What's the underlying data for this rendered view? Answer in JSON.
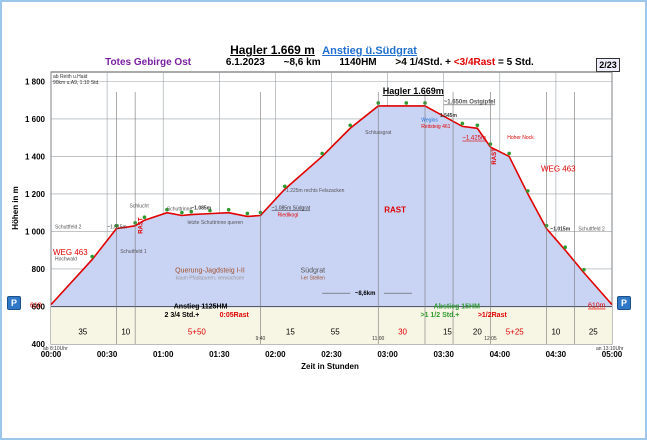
{
  "header": {
    "title": "Hagler 1.669 m",
    "subtitle": "Anstieg ü.Südgrat",
    "region": "Totes Gebirge Ost",
    "date": "6.1.2023",
    "distance": "~8,6 km",
    "elevation_gain": "1140HM",
    "time_prefix": ">4 1/4Std. +",
    "rest": "<3/4Rast",
    "total": "= 5 Std.",
    "page": "2/23"
  },
  "buttons": {
    "prev": "P",
    "next": "P"
  },
  "chart_data": {
    "type": "area",
    "ylabel": "Höhen in m",
    "xlabel": "Zeit in Stunden",
    "ylim": [
      400,
      1850
    ],
    "xlim": [
      0,
      300
    ],
    "y_ticks": [
      "400",
      "600",
      "800",
      "1 000",
      "1 200",
      "1 400",
      "1 600",
      "1 800"
    ],
    "x_ticks": [
      "00:00",
      "00:30",
      "01:00",
      "01:30",
      "02:00",
      "02:30",
      "03:00",
      "03:30",
      "04:00",
      "04:30",
      "05:00"
    ],
    "note": "ab Reith u.Haid\n90km u.A9, 1:10 Std.",
    "peak_label": "Hagler 1.669m",
    "series": [
      {
        "x": [
          0,
          22,
          35,
          45,
          50,
          62,
          70,
          75,
          85,
          95,
          105,
          112,
          125,
          145,
          160,
          175,
          190,
          200,
          220,
          228,
          235,
          245,
          255,
          265,
          275,
          285,
          300
        ],
        "y": [
          610,
          850,
          1015,
          1030,
          1060,
          1100,
          1085,
          1090,
          1095,
          1100,
          1080,
          1085,
          1225,
          1400,
          1550,
          1669,
          1669,
          1669,
          1560,
          1550,
          1450,
          1400,
          1200,
          1015,
          900,
          780,
          610
        ]
      }
    ],
    "rest_label": "RAST",
    "annotations": {
      "ostgipfel": "~1.650m Ostgipfel",
      "felszacken": "~1.225m rechts Felszacken",
      "suedgrat_1085": "~1.085m Südgrat",
      "riedlkogl": "Riedlkogl",
      "schuttfeld2": "Schuttfeld 2",
      "schuttfeld_left": "~1.015m",
      "schlucht": "Schlucht",
      "schuttfeld1": "Schuttfeld 1",
      "hochwald": "Hochwald",
      "weg_left": "WEG 463",
      "weg_right": "WEG 463",
      "weg_right_small": "Weglos",
      "rast_left": "RAST",
      "rast_right": "RAST",
      "rast_mid": "RAST",
      "schlussgrat": "Schlussgrat",
      "schuttrinne": "Schuttrinne",
      "schuttrinne_1085": "~1.085m",
      "letzte_schuttrinne": "letzte Schuttrinne queren",
      "reitsteig": "Reitsteig 461",
      "m1545": "1.545m",
      "m1425": "~1.425m",
      "hoher_nock": "Hoher Nock",
      "m1015_right": "~1.015m",
      "schuttfeld2_right": "Schuttfeld 2",
      "querung": "Querung-Jagdsteig I-II",
      "querung_sub": "kaum Pfadspuren, verwachsen",
      "suedgrat": "Südgrat",
      "suedgrat_sub": "I-er Stellen",
      "dist": "~8,6km",
      "elev_left": "610",
      "elev_right": "610m",
      "anstieg": "Anstieg 1125HM",
      "anstieg_time": "2 3/4 Std.+",
      "anstieg_rast": "0:05Rast",
      "abstieg": "Abstieg  15HM",
      "abstieg_time": ">1 1/2 Std.+",
      "abstieg_rast": ">1/2Rast",
      "start_time": "ab 8:10Uhr",
      "end_time": "an 13:10Uhr",
      "t_940": "9:40",
      "t_1100": "11:00",
      "t_1205": "12:05"
    },
    "segments": [
      "35",
      "10",
      "5+50",
      "15",
      "55",
      "30",
      "15",
      "20",
      "5+25",
      "10",
      "25"
    ],
    "colors": {
      "fill": "#c9d3f4",
      "line": "#e00000",
      "grid": "#9aa0a6",
      "green": "#2f9a2f",
      "label": "#e00000"
    }
  }
}
